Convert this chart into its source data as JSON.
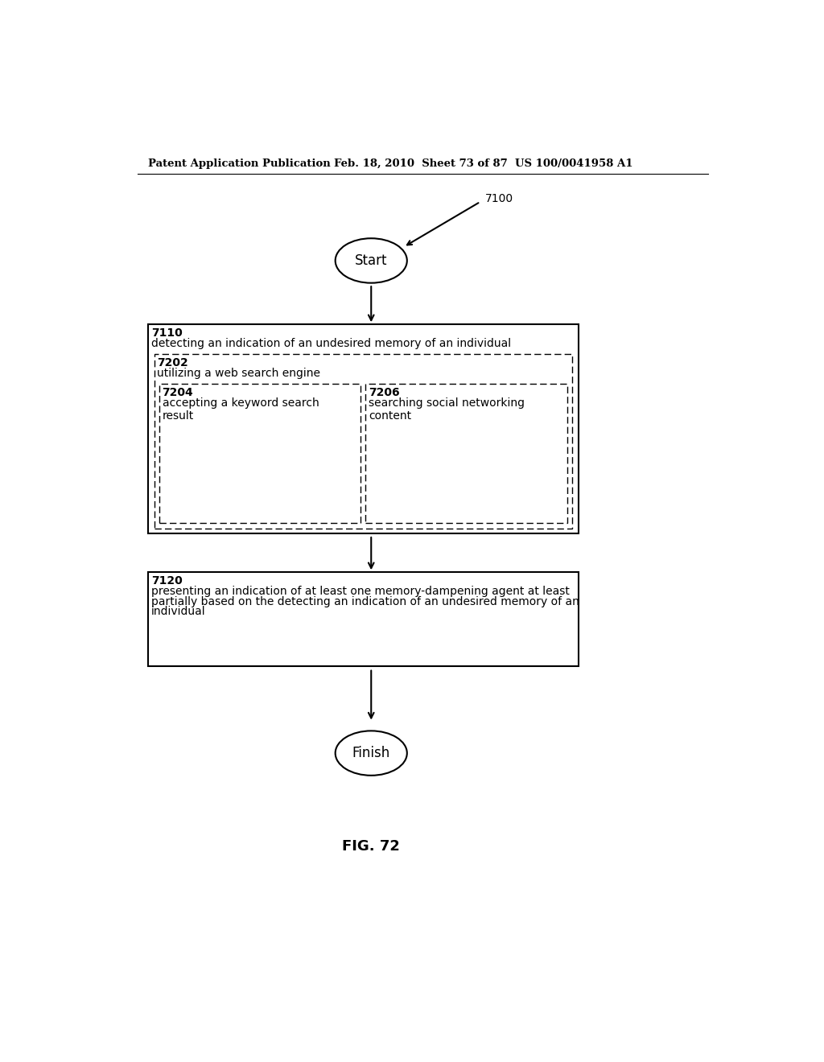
{
  "bg_color": "#ffffff",
  "header_left": "Patent Application Publication",
  "header_mid": "Feb. 18, 2010  Sheet 73 of 87",
  "header_right": "US 100/0041958 A1",
  "fig_label": "FIG. 72",
  "label_7100": "7100",
  "start_label": "Start",
  "finish_label": "Finish",
  "box7110_id": "7110",
  "box7110_text": "detecting an indication of an undesired memory of an individual",
  "box7202_id": "7202",
  "box7202_text": "utilizing a web search engine",
  "box7204_id": "7204",
  "box7204_text": "accepting a keyword search\nresult",
  "box7206_id": "7206",
  "box7206_text": "searching social networking\ncontent",
  "box7120_id": "7120",
  "box7120_text_line1": "presenting an indication of at least one memory-dampening agent at least",
  "box7120_text_line2": "partially based on the detecting an indication of an undesired memory of an",
  "box7120_text_line3": "individual"
}
